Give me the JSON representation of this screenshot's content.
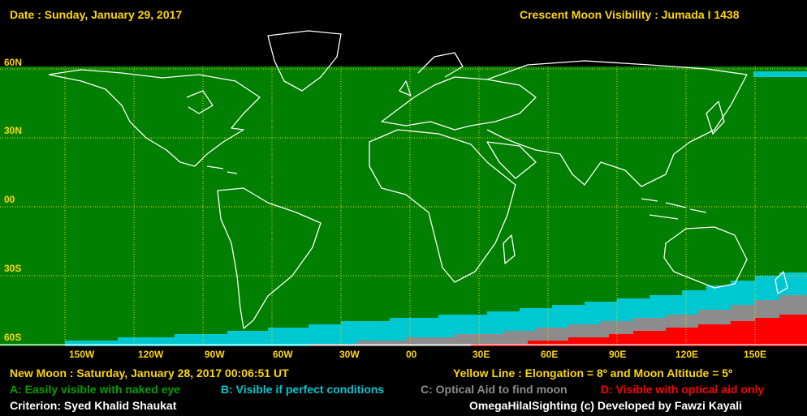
{
  "header": {
    "date": "Date : Sunday, January 29, 2017",
    "title": "Crescent Moon Visibility : Jumada I  1438"
  },
  "lat_labels": [
    "60N",
    "30N",
    "00",
    "30S",
    "60S"
  ],
  "lon_labels": [
    "150W",
    "120W",
    "90W",
    "60W",
    "30W",
    "00",
    "30E",
    "60E",
    "90E",
    "120E",
    "150E"
  ],
  "footer": {
    "new_moon": "New Moon : Saturday, January 28, 2017  00:06:51  UT",
    "yellow_line": "Yellow Line : Elongation = 8º  and Moon Altitude = 5º",
    "legend_a": "A: Easily visible with naked eye",
    "legend_b": "B: Visible if perfect conditions",
    "legend_c": "C: Optical Aid to find moon",
    "legend_d": "D: Visible with optical aid only",
    "criterion": "Criterion: Syed Khalid Shaukat",
    "credit": "OmegaHilalSighting  (c)  Developed by Fawzi Kayali"
  },
  "colors": {
    "zone_a": "#007F00",
    "zone_b": "#00C8D2",
    "zone_c": "#8C8C8C",
    "zone_d": "#FF0000",
    "grid": "#FFD700",
    "coast": "#FFFFFF",
    "text": "#FFD700"
  }
}
